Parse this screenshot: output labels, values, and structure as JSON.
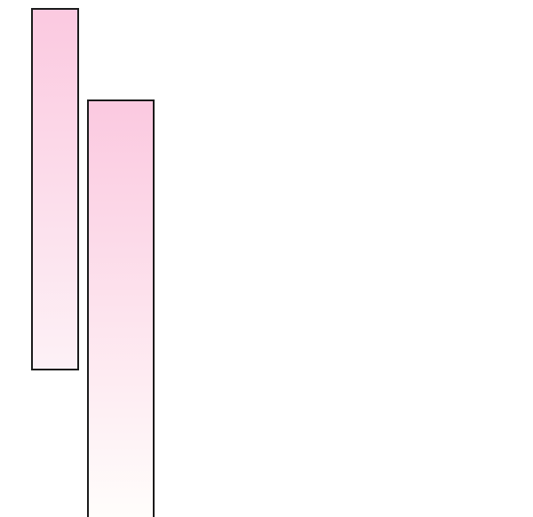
{
  "panels": [
    {
      "name": "left",
      "gradient_top": "#fbc9e0",
      "gradient_bottom": "#fdf1f6",
      "border": "#1a1a1a"
    },
    {
      "name": "right",
      "gradient_top": "#fbc9e0",
      "gradient_bottom": "#fffdfb",
      "border": "#1a1a1a"
    }
  ]
}
